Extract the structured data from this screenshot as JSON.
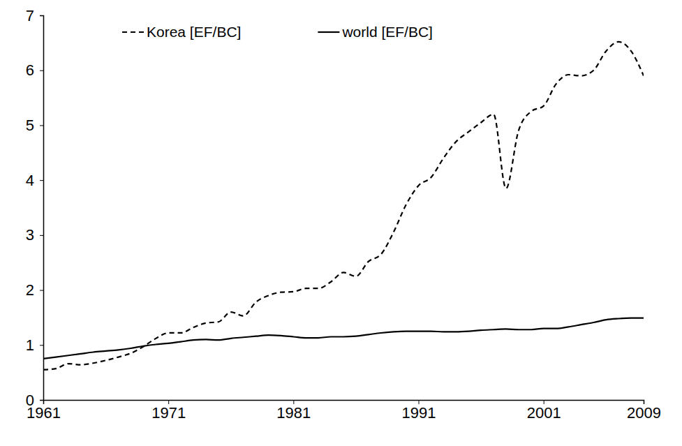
{
  "chart_data": {
    "type": "line",
    "x": [
      1961,
      1962,
      1963,
      1964,
      1965,
      1966,
      1967,
      1968,
      1969,
      1970,
      1971,
      1972,
      1973,
      1974,
      1975,
      1976,
      1977,
      1978,
      1979,
      1980,
      1981,
      1982,
      1983,
      1984,
      1985,
      1986,
      1987,
      1988,
      1989,
      1990,
      1991,
      1992,
      1993,
      1994,
      1995,
      1996,
      1997,
      1998,
      1999,
      2000,
      2001,
      2002,
      2003,
      2004,
      2005,
      2006,
      2007,
      2008,
      2009
    ],
    "series": [
      {
        "name": "Korea [EF/BC]",
        "color": "#000000",
        "line_style": "dashed",
        "values": [
          0.55,
          0.57,
          0.66,
          0.64,
          0.67,
          0.72,
          0.78,
          0.85,
          0.97,
          1.12,
          1.22,
          1.22,
          1.32,
          1.4,
          1.42,
          1.6,
          1.53,
          1.78,
          1.9,
          1.96,
          1.97,
          2.03,
          2.03,
          2.15,
          2.32,
          2.25,
          2.52,
          2.65,
          3.05,
          3.55,
          3.9,
          4.05,
          4.4,
          4.7,
          4.88,
          5.05,
          5.2,
          3.85,
          4.9,
          5.25,
          5.35,
          5.75,
          5.92,
          5.9,
          6.0,
          6.35,
          6.52,
          6.35,
          5.9
        ]
      },
      {
        "name": "world [EF/BC]",
        "color": "#000000",
        "line_style": "solid",
        "values": [
          0.75,
          0.78,
          0.81,
          0.84,
          0.87,
          0.89,
          0.91,
          0.94,
          0.98,
          1.01,
          1.03,
          1.06,
          1.09,
          1.1,
          1.09,
          1.12,
          1.14,
          1.16,
          1.18,
          1.17,
          1.15,
          1.13,
          1.13,
          1.15,
          1.15,
          1.16,
          1.19,
          1.22,
          1.24,
          1.25,
          1.25,
          1.25,
          1.24,
          1.24,
          1.25,
          1.27,
          1.28,
          1.29,
          1.28,
          1.28,
          1.3,
          1.3,
          1.33,
          1.37,
          1.41,
          1.46,
          1.48,
          1.49,
          1.49
        ]
      }
    ],
    "xlim": [
      1961,
      2009
    ],
    "xticks": [
      1961,
      1971,
      1981,
      1991,
      2001,
      2009
    ],
    "ylim": [
      0,
      7
    ],
    "yticks": [
      0,
      1,
      2,
      3,
      4,
      5,
      6,
      7
    ],
    "grid": false,
    "legend": "top"
  }
}
